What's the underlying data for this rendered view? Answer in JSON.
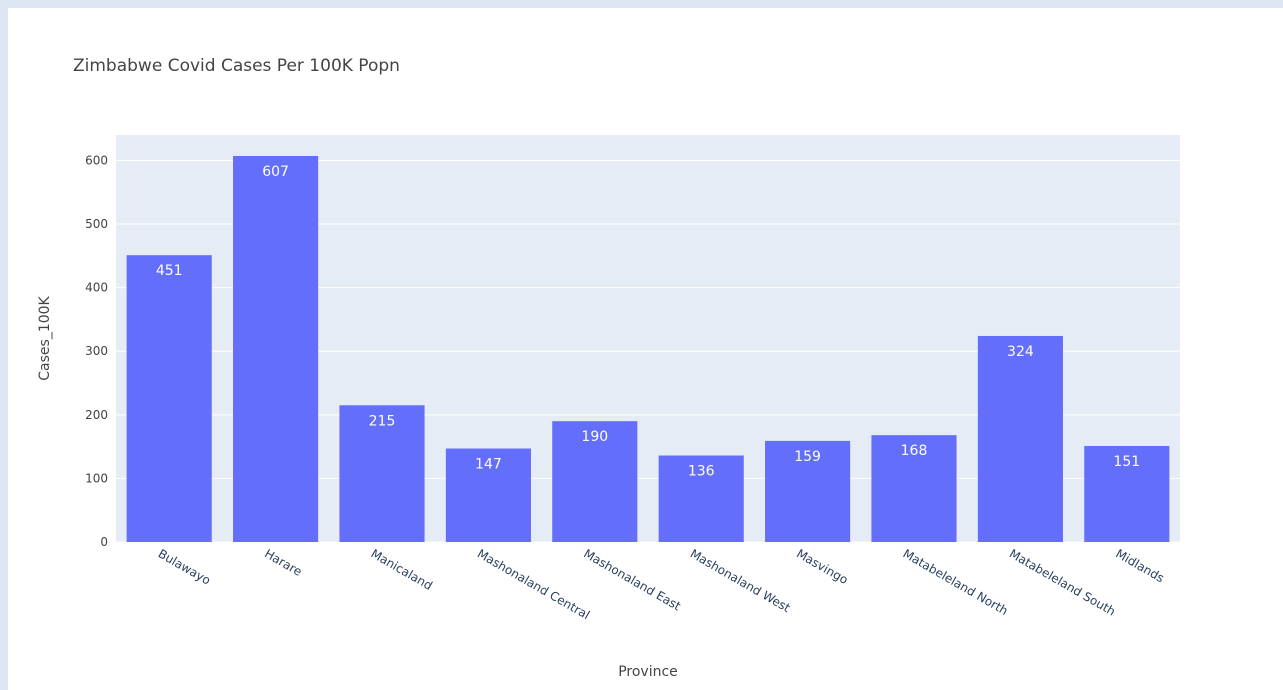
{
  "colors": {
    "bar": "#636efa",
    "plot_background": "#e5ecf6",
    "gridline": "#ffffff",
    "page_background": "#dde6f3"
  },
  "chart_data": {
    "type": "bar",
    "title": "Zimbabwe Covid Cases Per 100K Popn",
    "xlabel": "Province",
    "ylabel": "Cases_100K",
    "categories": [
      "Bulawayo",
      "Harare",
      "Manicaland",
      "Mashonaland Central",
      "Mashonaland East",
      "Mashonaland West",
      "Masvingo",
      "Matabeleland North",
      "Matabeleland South",
      "Midlands"
    ],
    "values": [
      451,
      607,
      215,
      147,
      190,
      136,
      159,
      168,
      324,
      151
    ],
    "data_labels": [
      "451",
      "607",
      "215",
      "147",
      "190",
      "136",
      "159",
      "168",
      "324",
      "151"
    ],
    "ylim": [
      0,
      640
    ],
    "yticks": [
      0,
      100,
      200,
      300,
      400,
      500,
      600
    ],
    "ytick_labels": [
      "0",
      "100",
      "200",
      "300",
      "400",
      "500",
      "600"
    ],
    "grid": true,
    "legend": "none"
  }
}
